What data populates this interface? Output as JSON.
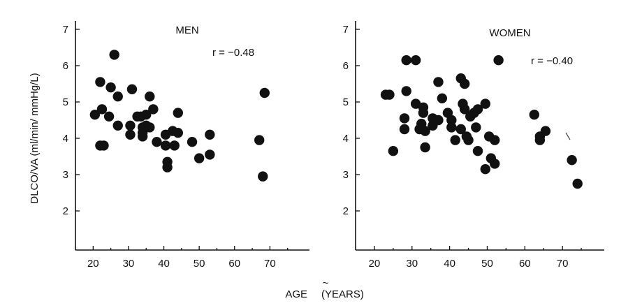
{
  "chart_data": [
    {
      "type": "scatter",
      "title": "MEN",
      "annotation": "r = −0.48",
      "ylabel": "DLCO/VA (ml/min/ mmHg/L)",
      "xlim": [
        15,
        80
      ],
      "ylim": [
        1,
        7
      ],
      "xticks": [
        20,
        30,
        40,
        50,
        60,
        70
      ],
      "yticks": [
        2,
        3,
        4,
        5,
        6,
        7
      ],
      "grid": false,
      "points": [
        [
          20.5,
          4.65
        ],
        [
          22,
          5.55
        ],
        [
          22.5,
          4.8
        ],
        [
          22,
          3.8
        ],
        [
          23,
          3.8
        ],
        [
          24.5,
          4.6
        ],
        [
          25,
          5.4
        ],
        [
          26,
          6.3
        ],
        [
          27,
          5.15
        ],
        [
          27,
          4.35
        ],
        [
          31,
          5.35
        ],
        [
          30.5,
          4.35
        ],
        [
          30.5,
          4.1
        ],
        [
          32.5,
          4.6
        ],
        [
          33.5,
          4.6
        ],
        [
          34,
          4.3
        ],
        [
          34,
          4.15
        ],
        [
          34,
          4.05
        ],
        [
          35,
          4.65
        ],
        [
          35,
          4.35
        ],
        [
          36,
          5.15
        ],
        [
          36,
          4.3
        ],
        [
          37,
          4.8
        ],
        [
          38,
          3.9
        ],
        [
          40.5,
          4.1
        ],
        [
          40.5,
          3.8
        ],
        [
          41,
          3.35
        ],
        [
          41,
          3.2
        ],
        [
          42.5,
          4.2
        ],
        [
          43,
          3.8
        ],
        [
          44,
          4.7
        ],
        [
          44,
          4.15
        ],
        [
          48,
          3.9
        ],
        [
          50,
          3.45
        ],
        [
          53,
          4.1
        ],
        [
          53,
          3.55
        ],
        [
          67,
          3.95
        ],
        [
          68,
          2.95
        ],
        [
          68.5,
          5.25
        ]
      ]
    },
    {
      "type": "scatter",
      "title": "WOMEN",
      "annotation": "r = −0.40",
      "xlim": [
        15,
        80
      ],
      "ylim": [
        1,
        7
      ],
      "xticks": [
        20,
        30,
        40,
        50,
        60,
        70
      ],
      "yticks": [
        2,
        3,
        4,
        5,
        6,
        7
      ],
      "grid": false,
      "points": [
        [
          23,
          5.2
        ],
        [
          24,
          5.2
        ],
        [
          25,
          3.65
        ],
        [
          28,
          4.55
        ],
        [
          28,
          4.25
        ],
        [
          28.5,
          6.15
        ],
        [
          28.5,
          5.3
        ],
        [
          31,
          6.15
        ],
        [
          31,
          4.95
        ],
        [
          32,
          4.25
        ],
        [
          32.5,
          4.4
        ],
        [
          33,
          4.85
        ],
        [
          33,
          4.7
        ],
        [
          33.5,
          4.2
        ],
        [
          33.5,
          3.75
        ],
        [
          35.5,
          4.55
        ],
        [
          35.5,
          4.35
        ],
        [
          37,
          5.55
        ],
        [
          37,
          4.5
        ],
        [
          38,
          5.1
        ],
        [
          39.5,
          4.7
        ],
        [
          40.5,
          4.5
        ],
        [
          40.5,
          4.3
        ],
        [
          41.5,
          3.95
        ],
        [
          43,
          5.65
        ],
        [
          43,
          4.25
        ],
        [
          43.5,
          4.95
        ],
        [
          44,
          5.5
        ],
        [
          44,
          4.8
        ],
        [
          44.5,
          4.05
        ],
        [
          45,
          3.95
        ],
        [
          45.5,
          4.6
        ],
        [
          46.5,
          4.7
        ],
        [
          47,
          4.3
        ],
        [
          47.5,
          3.65
        ],
        [
          47.5,
          4.8
        ],
        [
          49.5,
          4.95
        ],
        [
          49.5,
          3.15
        ],
        [
          50.5,
          4.05
        ],
        [
          51,
          3.45
        ],
        [
          52,
          3.95
        ],
        [
          52,
          3.3
        ],
        [
          53,
          6.15
        ],
        [
          62.5,
          4.65
        ],
        [
          64,
          4.05
        ],
        [
          64,
          3.95
        ],
        [
          65.5,
          4.2
        ],
        [
          72.5,
          3.4
        ],
        [
          74,
          2.75
        ]
      ]
    }
  ],
  "xlabel": "AGE",
  "xlabel_units": "(YEARS)"
}
